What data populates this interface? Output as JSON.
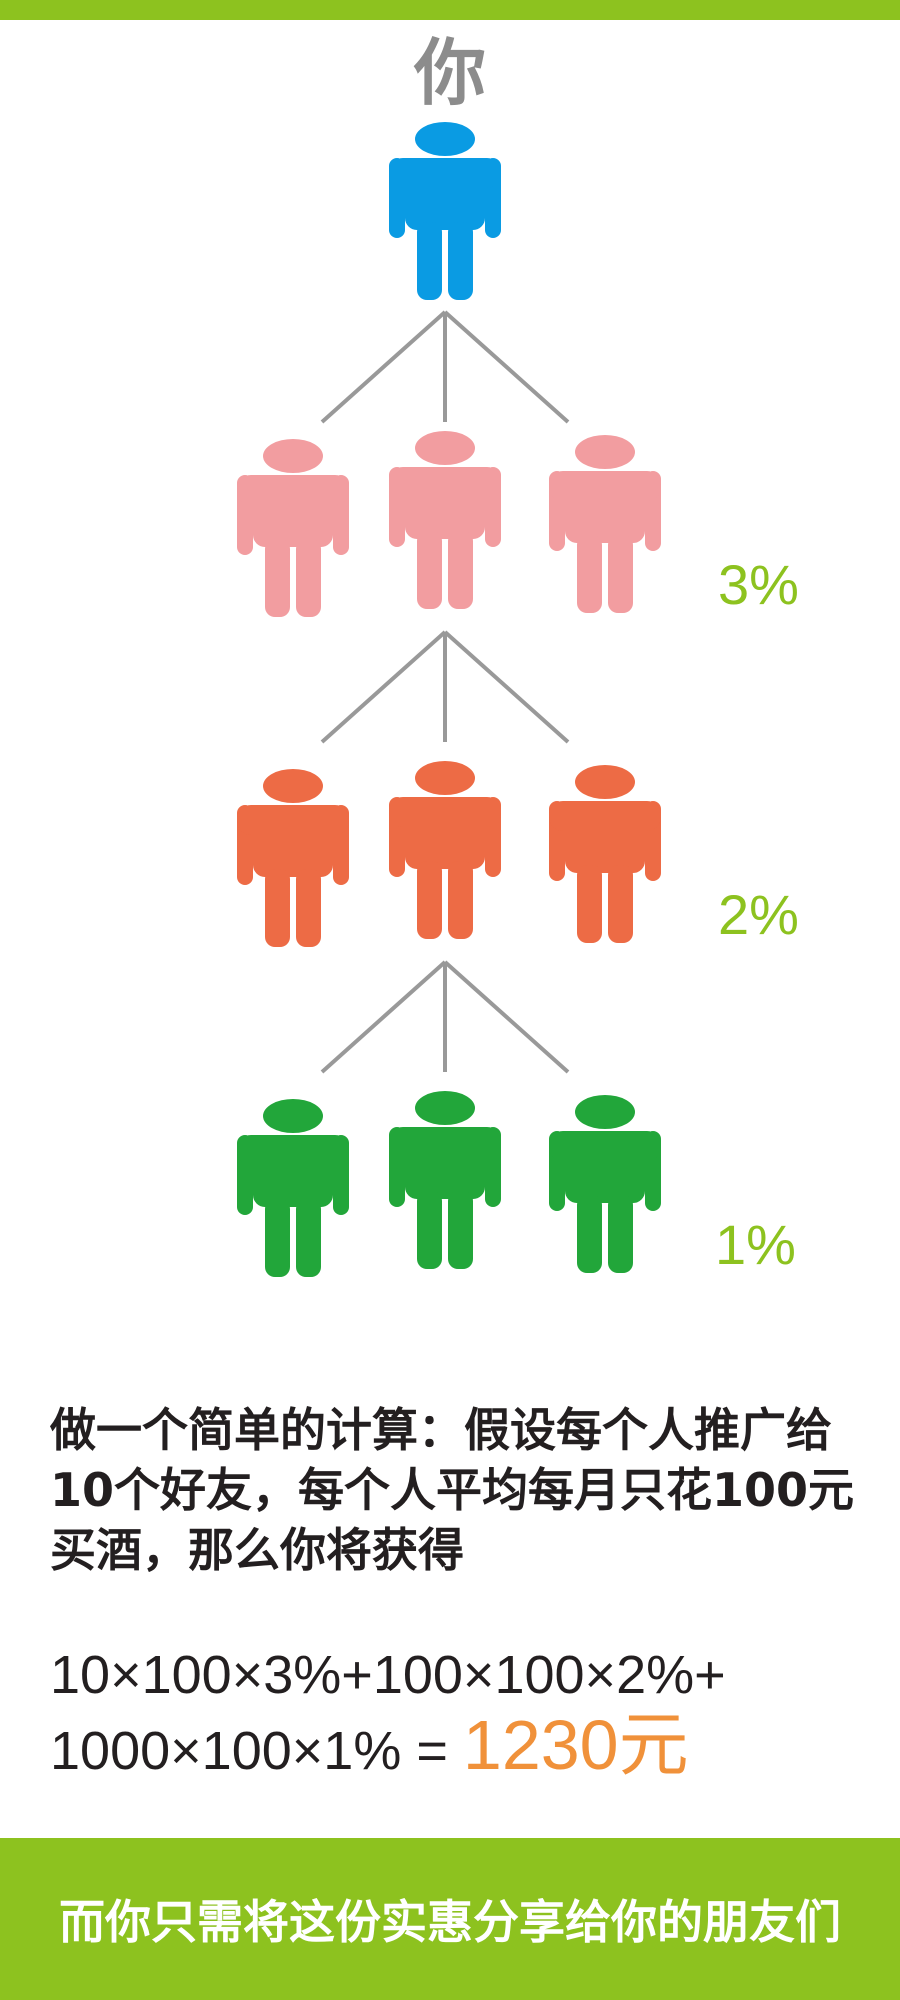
{
  "header": {
    "you_label": "你"
  },
  "tree": {
    "root_color": "#0a9be3",
    "levels": [
      {
        "percent": "3%",
        "color": "#f29da0"
      },
      {
        "percent": "2%",
        "color": "#ed6b45"
      },
      {
        "percent": "1%",
        "color": "#22a63a"
      }
    ],
    "line_color": "#999999"
  },
  "description": {
    "line1": "做一个简单的计算：假设每个人推广给",
    "line2": "10个好友，每个人平均每月只花100元",
    "line3": "买酒，那么你将获得"
  },
  "formula": {
    "line1": "10×100×3%+100×100×2%+",
    "line2": "1000×100×1% = ",
    "result": "1230元"
  },
  "footer": {
    "text": "而你只需将这份实惠分享给你的朋友们"
  },
  "colors": {
    "accent_green": "#8dc21f",
    "result_orange": "#f0913a",
    "text_dark": "#231f20"
  }
}
